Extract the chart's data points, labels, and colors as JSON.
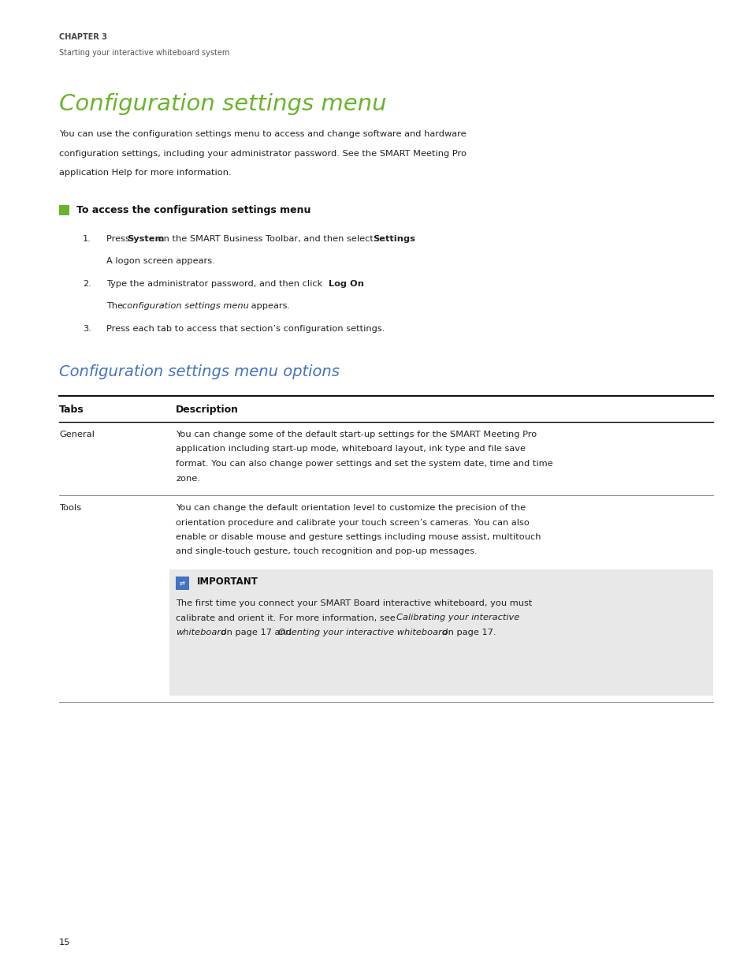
{
  "bg_color": "#ffffff",
  "page_width": 9.54,
  "page_height": 12.35,
  "chapter_label": "CHAPTER 3",
  "chapter_subtitle": "Starting your interactive whiteboard system",
  "main_title": "Configuration settings menu",
  "main_title_color": "#6ab42d",
  "intro_text_line1": "You can use the configuration settings menu to access and change software and hardware",
  "intro_text_line2": "configuration settings, including your administrator password. See the SMART Meeting Pro",
  "intro_text_line3": "application Help for more information.",
  "green_square_color": "#6ab42d",
  "procedure_heading": "To access the configuration settings menu",
  "step1_sub": "A logon screen appears.",
  "step2_sub_end": " appears.",
  "step3": "Press each tab to access that section’s configuration settings.",
  "section2_title": "Configuration settings menu options",
  "section2_color": "#4472c4",
  "table_header_col1": "Tabs",
  "table_header_col2": "Description",
  "table_row1_col1": "General",
  "table_row1_col2_l1": "You can change some of the default start-up settings for the SMART Meeting Pro",
  "table_row1_col2_l2": "application including start-up mode, whiteboard layout, ink type and file save",
  "table_row1_col2_l3": "format. You can also change power settings and set the system date, time and time",
  "table_row1_col2_l4": "zone.",
  "table_row2_col1": "Tools",
  "table_row2_col2_l1": "You can change the default orientation level to customize the precision of the",
  "table_row2_col2_l2": "orientation procedure and calibrate your touch screen’s cameras. You can also",
  "table_row2_col2_l3": "enable or disable mouse and gesture settings including mouse assist, multitouch",
  "table_row2_col2_l4": "and single-touch gesture, touch recognition and pop-up messages.",
  "important_bg": "#e8e8e8",
  "important_icon_color": "#4472c4",
  "important_label": "IMPORTANT",
  "important_text_l1": "The first time you connect your SMART Board interactive whiteboard, you must",
  "important_text_l2_pre": "calibrate and orient it. For more information, see ",
  "important_text_l2_italic": "Calibrating your interactive",
  "important_text_l3_italic": "whiteboard",
  "important_text_l3_mid": " on page 17 and ",
  "important_text_l3_italic2": "Orienting your interactive whiteboard",
  "important_text_l3_end": " on page 17.",
  "page_number": "15",
  "text_color": "#222222",
  "dark_color": "#111111",
  "line_color": "#333333",
  "faint_line_color": "#888888"
}
